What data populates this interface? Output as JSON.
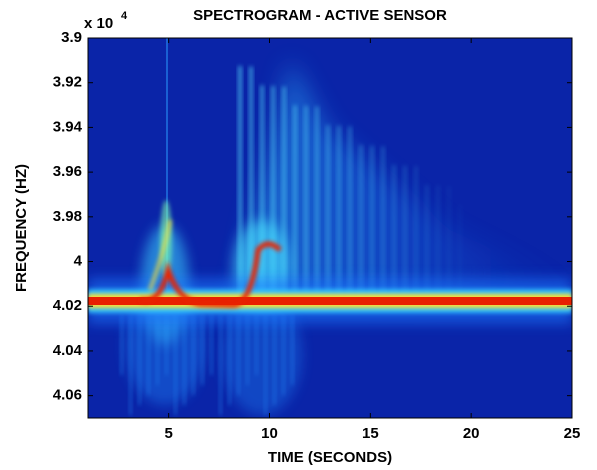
{
  "chart_data": {
    "type": "spectrogram",
    "title": "SPECTROGRAM - ACTIVE SENSOR",
    "x_label": "TIME (SECONDS)",
    "y_label": "FREQUENCY (HZ)",
    "y_multiplier": {
      "base": "x 10",
      "exponent": "4"
    },
    "xlim": [
      1,
      25
    ],
    "xticks": [
      5,
      10,
      15,
      20,
      25
    ],
    "ylim": [
      3.9,
      4.07
    ],
    "yticks": [
      3.9,
      3.92,
      3.94,
      3.96,
      3.98,
      4,
      4.02,
      4.04,
      4.06
    ],
    "y_reversed": true,
    "colormap": "jet"
  }
}
